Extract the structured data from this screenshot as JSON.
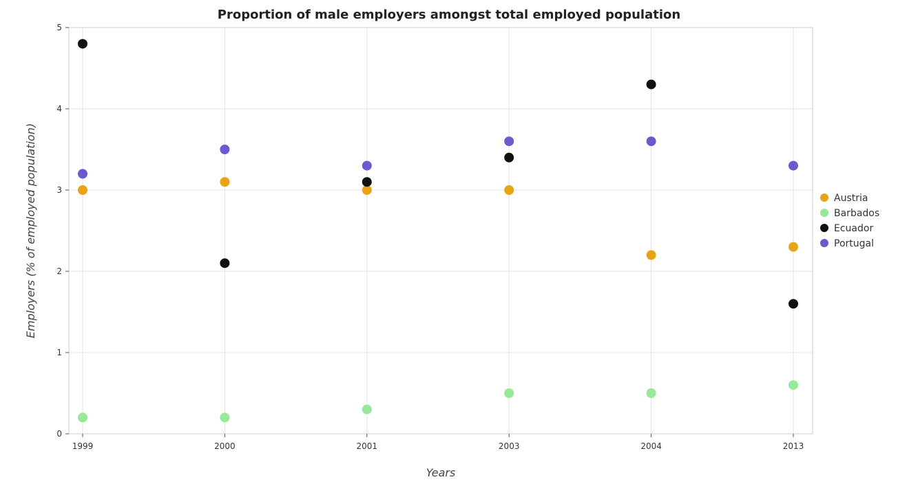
{
  "chart_data": {
    "type": "scatter",
    "title": "Proportion of male employers amongst total employed population",
    "xlabel": "Years",
    "ylabel": "Employers (% of employed population)",
    "categories": [
      "1999",
      "2000",
      "2001",
      "2003",
      "2004",
      "2013"
    ],
    "ylim": [
      0,
      5
    ],
    "yticks": [
      "0",
      "1",
      "2",
      "3",
      "4",
      "5"
    ],
    "grid": true,
    "legend_position": "right",
    "series": [
      {
        "name": "Austria",
        "color": "#e8a317",
        "values": [
          3.0,
          3.1,
          3.0,
          3.0,
          2.2,
          2.3
        ]
      },
      {
        "name": "Barbados",
        "color": "#98e89a",
        "values": [
          0.2,
          0.2,
          0.3,
          0.5,
          0.5,
          0.6
        ]
      },
      {
        "name": "Ecuador",
        "color": "#111111",
        "values": [
          4.8,
          2.1,
          3.1,
          3.4,
          4.3,
          1.6
        ]
      },
      {
        "name": "Portugal",
        "color": "#6a5acd",
        "values": [
          3.2,
          3.5,
          3.3,
          3.6,
          3.6,
          3.3
        ]
      }
    ]
  }
}
